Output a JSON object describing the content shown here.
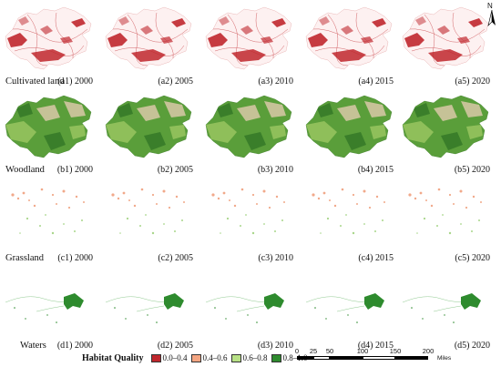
{
  "rows": [
    {
      "label": "Cultivated land",
      "captions": [
        "(a1) 2000",
        "(a2) 2005",
        "(a3) 2010",
        "(a4) 2015",
        "(a5) 2020"
      ]
    },
    {
      "label": "Woodland",
      "captions": [
        "(b1) 2000",
        "(b2) 2005",
        "(b3) 2010",
        "(b4) 2015",
        "(b5) 2020"
      ]
    },
    {
      "label": "Grassland",
      "captions": [
        "(c1) 2000",
        "(c2) 2005",
        "(c3) 2010",
        "(c4) 2015",
        "(c5) 2020"
      ]
    },
    {
      "label": "Waters",
      "captions": [
        "(d1) 2000",
        "(d2) 2005",
        "(d3) 2010",
        "(d4) 2015",
        "(d5) 2020"
      ]
    }
  ],
  "north_arrow": "N",
  "legend": {
    "title": "Habitat Quality",
    "classes": [
      {
        "label": "0.0–0.4",
        "color": "#c0272d"
      },
      {
        "label": "0.4–0.6",
        "color": "#f4a582"
      },
      {
        "label": "0.6–0.8",
        "color": "#b8e186"
      },
      {
        "label": "0.8–1.0",
        "color": "#2e8b2e"
      }
    ]
  },
  "scale_bar": {
    "ticks": [
      "0",
      "25",
      "50",
      "100",
      "150",
      "200"
    ],
    "unit": "Miles"
  },
  "layer_colors": {
    "cultivated": "#c0272d",
    "woodland_high": "#3e8e2f",
    "woodland_mid": "#8fbf5a",
    "woodland_low": "#d9c8a8",
    "grassland": "#f1a98a",
    "grassland_alt": "#a8d68a",
    "waters": "#2e8b2e"
  }
}
